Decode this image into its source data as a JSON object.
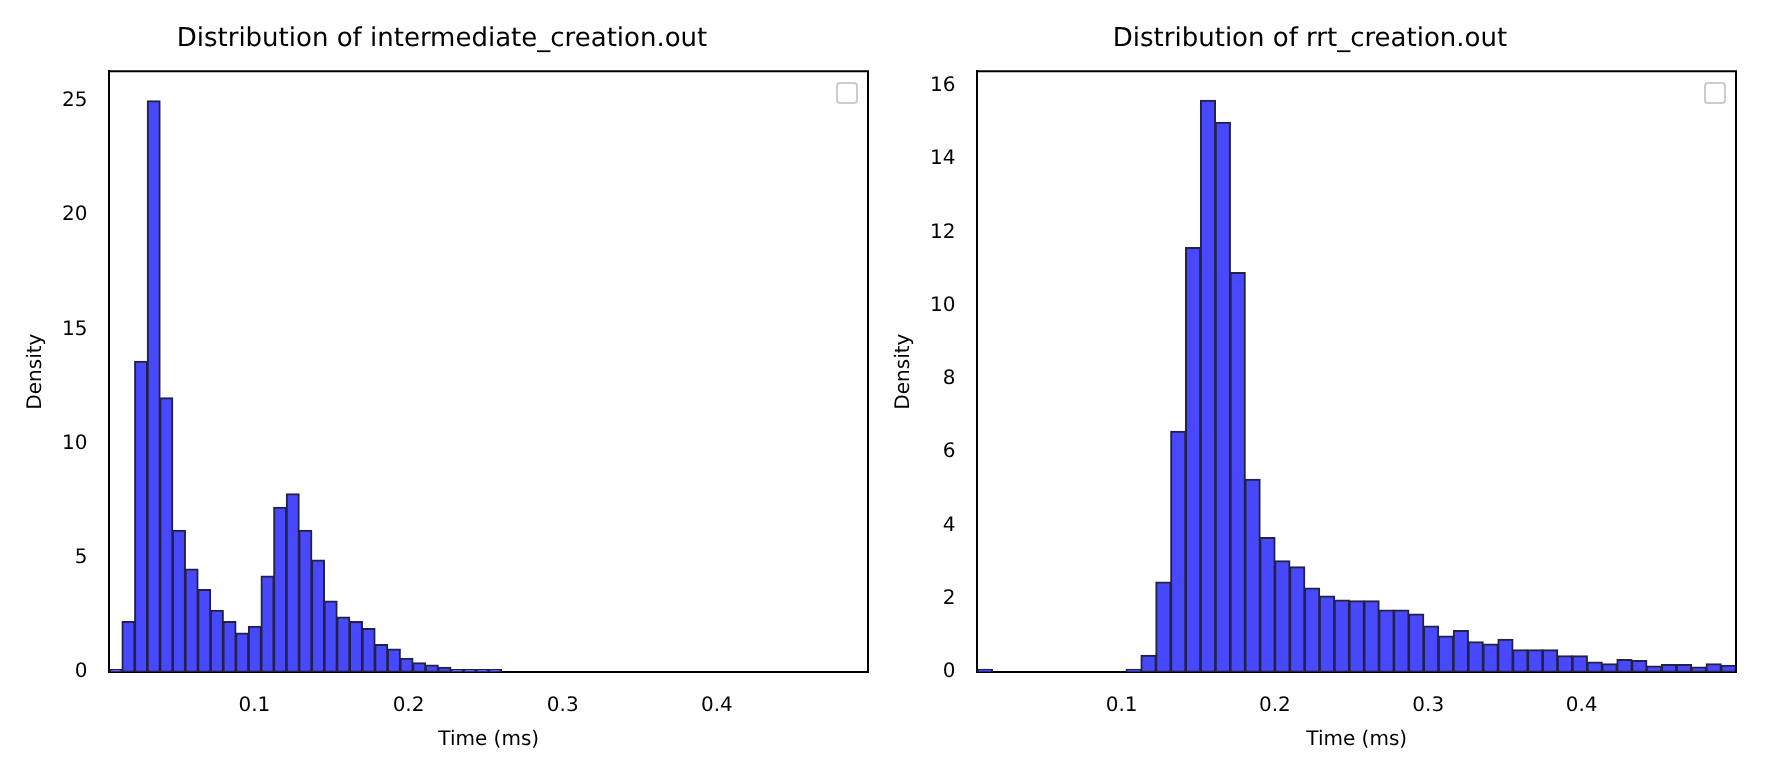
{
  "chart_data": [
    {
      "type": "histogram",
      "title": "Distribution of intermediate_creation.out",
      "xlabel": "Time (ms)",
      "ylabel": "Density",
      "color": "#4848ff",
      "bins": [
        0.006,
        0.0142,
        0.0224,
        0.0306,
        0.0388,
        0.047,
        0.0552,
        0.0634,
        0.0716,
        0.0798,
        0.088,
        0.0962,
        0.1044,
        0.1126,
        0.1208,
        0.129,
        0.1372,
        0.1454,
        0.1536,
        0.1618,
        0.17,
        0.1782,
        0.1864,
        0.1946,
        0.2028,
        0.211,
        0.2192,
        0.2274,
        0.2356,
        0.2438,
        0.252,
        0.2602,
        0.2684,
        0.2766,
        0.2848,
        0.293,
        0.3012,
        0.3094,
        0.3176,
        0.3258,
        0.334,
        0.3422,
        0.3504,
        0.3586,
        0.3668,
        0.375,
        0.3832,
        0.3914,
        0.3996,
        0.4078,
        0.416,
        0.4242,
        0.4324,
        0.4406,
        0.4488,
        0.457,
        0.4652,
        0.4734,
        0.4816,
        0.4898,
        0.498
      ],
      "values": [
        0.1,
        2.2,
        13.6,
        25.0,
        12.0,
        6.2,
        4.5,
        3.6,
        2.7,
        2.2,
        1.7,
        2.0,
        4.2,
        7.2,
        7.8,
        6.2,
        4.9,
        3.1,
        2.4,
        2.2,
        1.9,
        1.2,
        1.0,
        0.6,
        0.4,
        0.3,
        0.2,
        0.1,
        0.1,
        0.1,
        0.1,
        0,
        0,
        0,
        0,
        0,
        0,
        0,
        0,
        0,
        0,
        0,
        0,
        0,
        0,
        0,
        0,
        0,
        0,
        0,
        0,
        0,
        0,
        0,
        0,
        0,
        0,
        0,
        0,
        0
      ],
      "xlim": [
        0.006,
        0.498
      ],
      "ylim": [
        0,
        26.3
      ],
      "xticks": [
        0.1,
        0.2,
        0.3,
        0.4
      ],
      "yticks": [
        0,
        5,
        10,
        15,
        20,
        25
      ]
    },
    {
      "type": "histogram",
      "title": "Distribution of rrt_creation.out",
      "xlabel": "Time (ms)",
      "ylabel": "Density",
      "color": "#4848ff",
      "bins": [
        0.006,
        0.0157,
        0.0254,
        0.0351,
        0.0448,
        0.0545,
        0.0642,
        0.0739,
        0.0836,
        0.0933,
        0.103,
        0.1127,
        0.1224,
        0.1321,
        0.1418,
        0.1515,
        0.1612,
        0.1709,
        0.1806,
        0.1903,
        0.2,
        0.2097,
        0.2194,
        0.2291,
        0.2388,
        0.2485,
        0.2582,
        0.2679,
        0.2776,
        0.2873,
        0.297,
        0.3067,
        0.3164,
        0.3261,
        0.3358,
        0.3455,
        0.3552,
        0.3649,
        0.3746,
        0.3843,
        0.394,
        0.4037,
        0.4134,
        0.4231,
        0.4328,
        0.4425,
        0.4522,
        0.4619,
        0.4716,
        0.4813,
        0.491,
        0.5007
      ],
      "values": [
        0.07,
        0,
        0,
        0,
        0,
        0,
        0,
        0,
        0,
        0,
        0.07,
        0.45,
        2.45,
        6.57,
        11.58,
        15.6,
        15.0,
        10.9,
        5.26,
        3.67,
        3.03,
        2.87,
        2.29,
        2.07,
        1.96,
        1.94,
        1.94,
        1.69,
        1.69,
        1.58,
        1.25,
        0.98,
        1.13,
        0.82,
        0.76,
        0.89,
        0.6,
        0.6,
        0.6,
        0.44,
        0.44,
        0.27,
        0.22,
        0.34,
        0.31,
        0.16,
        0.2,
        0.2,
        0.13,
        0.22,
        0.18
      ],
      "xlim": [
        0.006,
        0.5007
      ],
      "ylim": [
        0,
        16.4
      ],
      "xticks": [
        0.1,
        0.2,
        0.3,
        0.4
      ],
      "yticks": [
        0,
        2,
        4,
        6,
        8,
        10,
        12,
        14,
        16
      ]
    }
  ]
}
